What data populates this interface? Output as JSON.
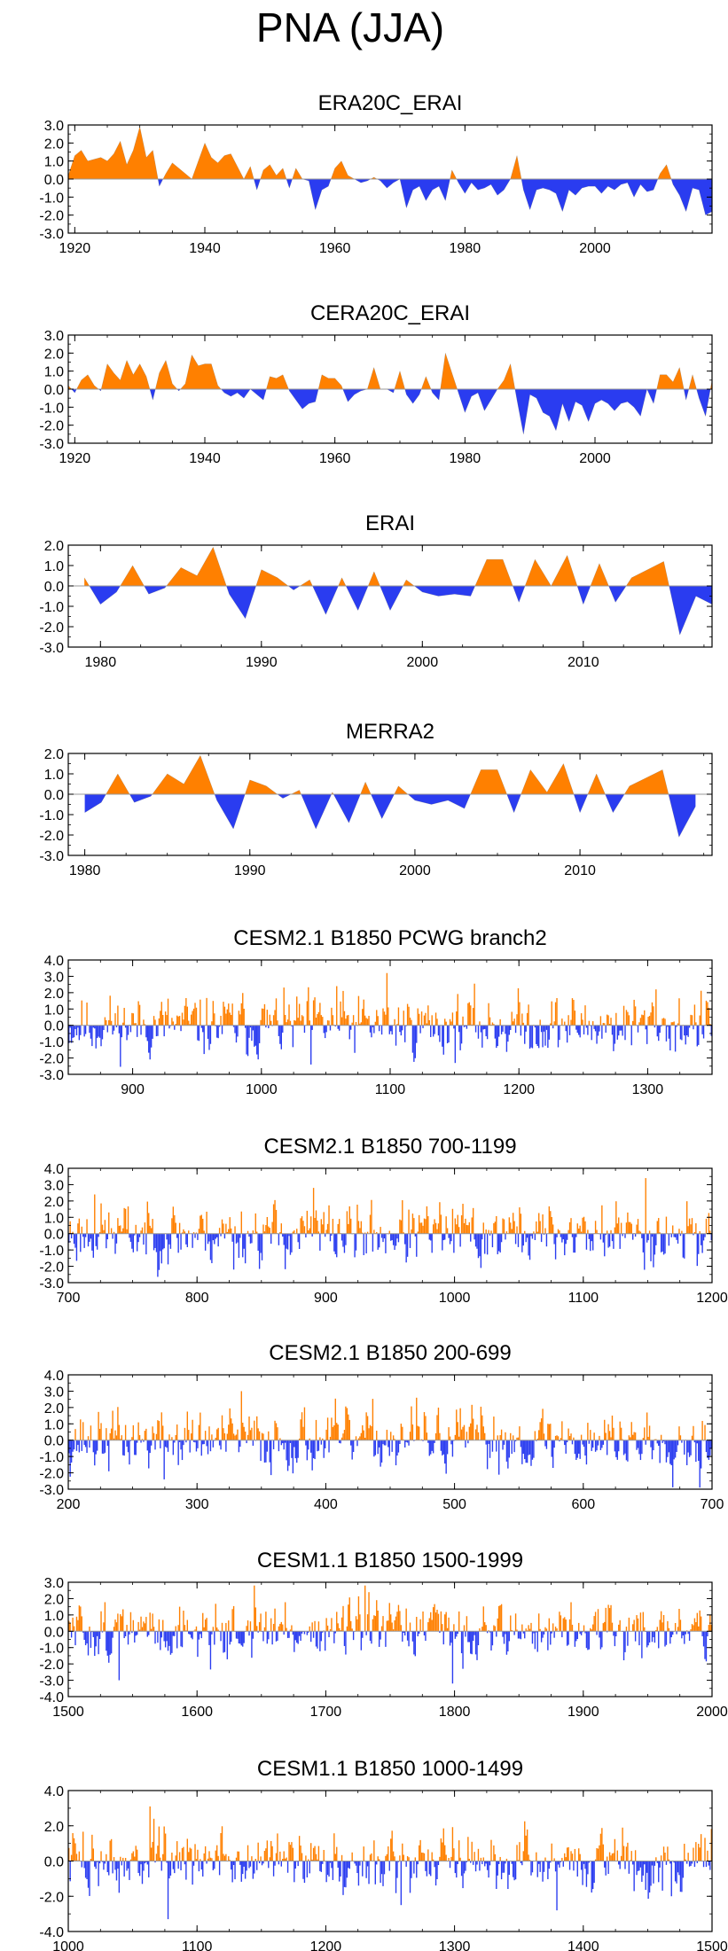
{
  "title": "PNA (JJA)",
  "colors": {
    "positive": "#ff8000",
    "negative": "#2a3cf0",
    "axis": "#000000",
    "zero": "#999999"
  },
  "chart_data": [
    {
      "type": "area",
      "title": "ERA20C_ERAI",
      "xlim": [
        1919,
        2018
      ],
      "ylim": [
        -3,
        3
      ],
      "ytick_labels": [
        "3.0",
        "2.0",
        "1.0",
        "0.0",
        "-1.0",
        "-2.0",
        "-3.0"
      ],
      "xticks": [
        1920,
        1940,
        1960,
        1980,
        2000
      ],
      "x": [
        1919,
        1920,
        1921,
        1922,
        1923,
        1924,
        1925,
        1926,
        1927,
        1928,
        1929,
        1930,
        1931,
        1932,
        1933,
        1934,
        1935,
        1936,
        1937,
        1938,
        1939,
        1940,
        1941,
        1942,
        1943,
        1944,
        1945,
        1946,
        1947,
        1948,
        1949,
        1950,
        1951,
        1952,
        1953,
        1954,
        1955,
        1956,
        1957,
        1958,
        1959,
        1960,
        1961,
        1962,
        1963,
        1964,
        1965,
        1966,
        1967,
        1968,
        1969,
        1970,
        1971,
        1972,
        1973,
        1974,
        1975,
        1976,
        1977,
        1978,
        1979,
        1980,
        1981,
        1982,
        1983,
        1984,
        1985,
        1986,
        1987,
        1988,
        1989,
        1990,
        1991,
        1992,
        1993,
        1994,
        1995,
        1996,
        1997,
        1998,
        1999,
        2000,
        2001,
        2002,
        2003,
        2004,
        2005,
        2006,
        2007,
        2008,
        2009,
        2010,
        2011,
        2012,
        2013,
        2014,
        2015,
        2016,
        2017,
        2018
      ],
      "values": [
        0.2,
        1.3,
        1.6,
        1.0,
        1.1,
        1.2,
        1.0,
        1.4,
        2.1,
        0.8,
        1.6,
        2.9,
        1.2,
        1.6,
        -0.4,
        0.3,
        0.9,
        0.6,
        0.3,
        0.0,
        1.0,
        2.0,
        1.2,
        0.9,
        1.3,
        1.4,
        0.7,
        0.0,
        0.7,
        -0.6,
        0.5,
        0.8,
        0.2,
        0.6,
        -0.5,
        0.6,
        0.0,
        -0.1,
        -1.7,
        -0.6,
        -0.4,
        0.6,
        1.0,
        0.2,
        0.0,
        -0.2,
        -0.1,
        0.1,
        -0.1,
        -0.5,
        -0.2,
        0.0,
        -1.6,
        -0.6,
        -0.4,
        -1.2,
        -0.6,
        -0.4,
        -1.2,
        0.5,
        -0.2,
        -0.8,
        -0.2,
        -0.6,
        -0.5,
        -0.3,
        -0.9,
        -0.6,
        0.0,
        1.3,
        -0.6,
        -1.7,
        -0.6,
        -0.5,
        -0.6,
        -0.8,
        -1.8,
        -0.6,
        -0.9,
        -0.5,
        -0.4,
        -0.4,
        -0.8,
        -0.4,
        -0.6,
        -0.3,
        -0.2,
        -1.0,
        -0.3,
        -0.7,
        -0.6,
        0.3,
        0.8,
        -0.3,
        -0.9,
        -1.8,
        -0.5,
        -0.6,
        -2.0,
        -1.8
      ]
    },
    {
      "type": "area",
      "title": "CERA20C_ERAI",
      "xlim": [
        1919,
        2018
      ],
      "ylim": [
        -3,
        3
      ],
      "ytick_labels": [
        "3.0",
        "2.0",
        "1.0",
        "0.0",
        "-1.0",
        "-2.0",
        "-3.0"
      ],
      "xticks": [
        1920,
        1940,
        1960,
        1980,
        2000
      ],
      "x": [
        1919,
        1920,
        1921,
        1922,
        1923,
        1924,
        1925,
        1926,
        1927,
        1928,
        1929,
        1930,
        1931,
        1932,
        1933,
        1934,
        1935,
        1936,
        1937,
        1938,
        1939,
        1940,
        1941,
        1942,
        1943,
        1944,
        1945,
        1946,
        1947,
        1948,
        1949,
        1950,
        1951,
        1952,
        1953,
        1954,
        1955,
        1956,
        1957,
        1958,
        1959,
        1960,
        1961,
        1962,
        1963,
        1964,
        1965,
        1966,
        1967,
        1968,
        1969,
        1970,
        1971,
        1972,
        1973,
        1974,
        1975,
        1976,
        1977,
        1978,
        1979,
        1980,
        1981,
        1982,
        1983,
        1984,
        1985,
        1986,
        1987,
        1988,
        1989,
        1990,
        1991,
        1992,
        1993,
        1994,
        1995,
        1996,
        1997,
        1998,
        1999,
        2000,
        2001,
        2002,
        2003,
        2004,
        2005,
        2006,
        2007,
        2008,
        2009,
        2010,
        2011,
        2012,
        2013,
        2014,
        2015,
        2016,
        2017,
        2018
      ],
      "values": [
        0.2,
        -0.2,
        0.5,
        0.8,
        0.2,
        -0.1,
        1.4,
        0.9,
        0.5,
        1.6,
        0.8,
        1.4,
        0.7,
        -0.6,
        0.9,
        1.6,
        0.3,
        -0.1,
        0.3,
        1.9,
        1.3,
        1.4,
        1.4,
        0.2,
        -0.2,
        -0.4,
        -0.2,
        -0.5,
        0.0,
        -0.3,
        -0.6,
        0.7,
        0.6,
        0.8,
        -0.1,
        -0.6,
        -1.1,
        -0.8,
        -0.7,
        0.8,
        0.6,
        0.6,
        0.2,
        -0.7,
        -0.3,
        -0.1,
        0.0,
        1.2,
        0.0,
        0.0,
        -0.2,
        1.0,
        -0.3,
        -0.8,
        -0.3,
        0.7,
        -0.2,
        -0.6,
        2.0,
        0.9,
        -0.2,
        -1.3,
        -0.4,
        -0.2,
        -1.2,
        -0.6,
        0.0,
        0.5,
        1.4,
        -0.6,
        -2.5,
        -0.3,
        -0.5,
        -1.3,
        -1.5,
        -2.3,
        -0.8,
        -1.8,
        -0.7,
        -0.9,
        -1.8,
        -0.8,
        -0.6,
        -0.8,
        -1.2,
        -0.8,
        -0.7,
        -1.0,
        -1.5,
        0.0,
        -0.8,
        0.8,
        0.8,
        0.4,
        1.2,
        -0.6,
        0.8,
        -0.5,
        -1.5,
        0.5
      ]
    },
    {
      "type": "area",
      "title": "ERAI",
      "xlim": [
        1978,
        2018
      ],
      "ylim": [
        -3,
        2
      ],
      "ytick_labels": [
        "2.0",
        "1.0",
        "0.0",
        "-1.0",
        "-2.0",
        "-3.0"
      ],
      "xticks": [
        1980,
        1990,
        2000,
        2010
      ],
      "x": [
        1979,
        1980,
        1981,
        1982,
        1983,
        1984,
        1985,
        1986,
        1987,
        1988,
        1989,
        1990,
        1991,
        1992,
        1993,
        1994,
        1995,
        1996,
        1997,
        1998,
        1999,
        2000,
        2001,
        2002,
        2003,
        2004,
        2005,
        2006,
        2007,
        2008,
        2009,
        2010,
        2011,
        2012,
        2013,
        2014,
        2015,
        2016,
        2017,
        2018
      ],
      "values": [
        0.4,
        -0.9,
        -0.3,
        1.0,
        -0.4,
        -0.1,
        0.9,
        0.5,
        1.9,
        -0.4,
        -1.6,
        0.8,
        0.4,
        -0.2,
        0.3,
        -1.4,
        0.4,
        -1.2,
        0.7,
        -1.2,
        0.3,
        -0.3,
        -0.5,
        -0.4,
        -0.5,
        1.3,
        1.3,
        -0.8,
        1.3,
        0.0,
        1.5,
        -0.9,
        1.1,
        -0.8,
        0.4,
        0.8,
        1.2,
        -2.4,
        -0.5,
        -0.9
      ]
    },
    {
      "type": "area",
      "title": "MERRA2",
      "xlim": [
        1979,
        2018
      ],
      "ylim": [
        -3,
        2
      ],
      "ytick_labels": [
        "2.0",
        "1.0",
        "0.0",
        "-1.0",
        "-2.0",
        "-3.0"
      ],
      "xticks": [
        1980,
        1990,
        2000,
        2010
      ],
      "x": [
        1980,
        1981,
        1982,
        1983,
        1984,
        1985,
        1986,
        1987,
        1988,
        1989,
        1990,
        1991,
        1992,
        1993,
        1994,
        1995,
        1996,
        1997,
        1998,
        1999,
        2000,
        2001,
        2002,
        2003,
        2004,
        2005,
        2006,
        2007,
        2008,
        2009,
        2010,
        2011,
        2012,
        2013,
        2014,
        2015,
        2016,
        2017
      ],
      "values": [
        -0.9,
        -0.4,
        1.0,
        -0.4,
        -0.1,
        1.0,
        0.5,
        1.9,
        -0.3,
        -1.7,
        0.7,
        0.4,
        -0.2,
        0.2,
        -1.7,
        0.1,
        -1.4,
        0.6,
        -1.2,
        0.4,
        -0.3,
        -0.5,
        -0.3,
        -0.7,
        1.2,
        1.2,
        -0.9,
        1.2,
        0.1,
        1.5,
        -0.9,
        1.0,
        -0.9,
        0.4,
        0.8,
        1.2,
        -2.1,
        -0.6
      ]
    },
    {
      "type": "bar",
      "title": "CESM2.1 B1850 PCWG branch2",
      "xlim": [
        850,
        1350
      ],
      "ylim": [
        -3,
        4
      ],
      "ytick_labels": [
        "4.0",
        "3.0",
        "2.0",
        "1.0",
        "0.0",
        "-1.0",
        "-2.0",
        "-3.0"
      ],
      "xticks": [
        900,
        1000,
        1100,
        1200,
        1300
      ],
      "start": 850,
      "count": 500,
      "seed": 11,
      "amp": 1.2,
      "peaks": [
        [
          1097,
          3.2
        ],
        [
          1058,
          2.4
        ],
        [
          1306,
          2.2
        ],
        [
          1038,
          -2.4
        ]
      ]
    },
    {
      "type": "bar",
      "title": "CESM2.1 B1850 700-1199",
      "xlim": [
        700,
        1200
      ],
      "ylim": [
        -3,
        4
      ],
      "ytick_labels": [
        "4.0",
        "3.0",
        "2.0",
        "1.0",
        "0.0",
        "-1.0",
        "-2.0",
        "-3.0"
      ],
      "xticks": [
        700,
        800,
        900,
        1000,
        1100,
        1200
      ],
      "start": 700,
      "count": 500,
      "seed": 23,
      "amp": 1.2,
      "peaks": [
        [
          1148,
          3.4
        ],
        [
          890,
          2.8
        ],
        [
          720,
          2.4
        ],
        [
          828,
          -2.2
        ],
        [
          1020,
          -2.1
        ]
      ]
    },
    {
      "type": "bar",
      "title": "CESM2.1 B1850 200-699",
      "xlim": [
        200,
        700
      ],
      "ylim": [
        -3,
        4
      ],
      "ytick_labels": [
        "4.0",
        "3.0",
        "2.0",
        "1.0",
        "0.0",
        "-1.0",
        "-2.0",
        "-3.0"
      ],
      "xticks": [
        200,
        300,
        400,
        500,
        600,
        700
      ],
      "start": 200,
      "count": 500,
      "seed": 37,
      "amp": 1.2,
      "peaks": [
        [
          334,
          3.0
        ],
        [
          470,
          2.6
        ],
        [
          690,
          -2.9
        ],
        [
          274,
          -2.4
        ]
      ]
    },
    {
      "type": "bar",
      "title": "CESM1.1 B1850 1500-1999",
      "xlim": [
        1500,
        2000
      ],
      "ylim": [
        -4,
        3
      ],
      "ytick_labels": [
        "3.0",
        "2.0",
        "1.0",
        "0.0",
        "-1.0",
        "-2.0",
        "-3.0",
        "-4.0"
      ],
      "xticks": [
        1500,
        1600,
        1700,
        1800,
        1900,
        2000
      ],
      "start": 1500,
      "count": 500,
      "seed": 51,
      "amp": 1.1,
      "peaks": [
        [
          1798,
          -3.2
        ],
        [
          1539,
          -3.0
        ],
        [
          1644,
          2.8
        ],
        [
          1730,
          2.8
        ]
      ]
    },
    {
      "type": "bar",
      "title": "CESM1.1 B1850 1000-1499",
      "xlim": [
        1000,
        1500
      ],
      "ylim": [
        -4,
        4
      ],
      "ytick_labels": [
        "4.0",
        "2.0",
        "0.0",
        "-2.0",
        "-4.0"
      ],
      "xticks": [
        1000,
        1100,
        1200,
        1300,
        1400,
        1500
      ],
      "start": 1000,
      "count": 500,
      "seed": 73,
      "amp": 1.1,
      "peaks": [
        [
          1063,
          3.1
        ],
        [
          1077,
          -3.3
        ],
        [
          1258,
          -2.5
        ],
        [
          1379,
          -2.8
        ]
      ]
    }
  ]
}
